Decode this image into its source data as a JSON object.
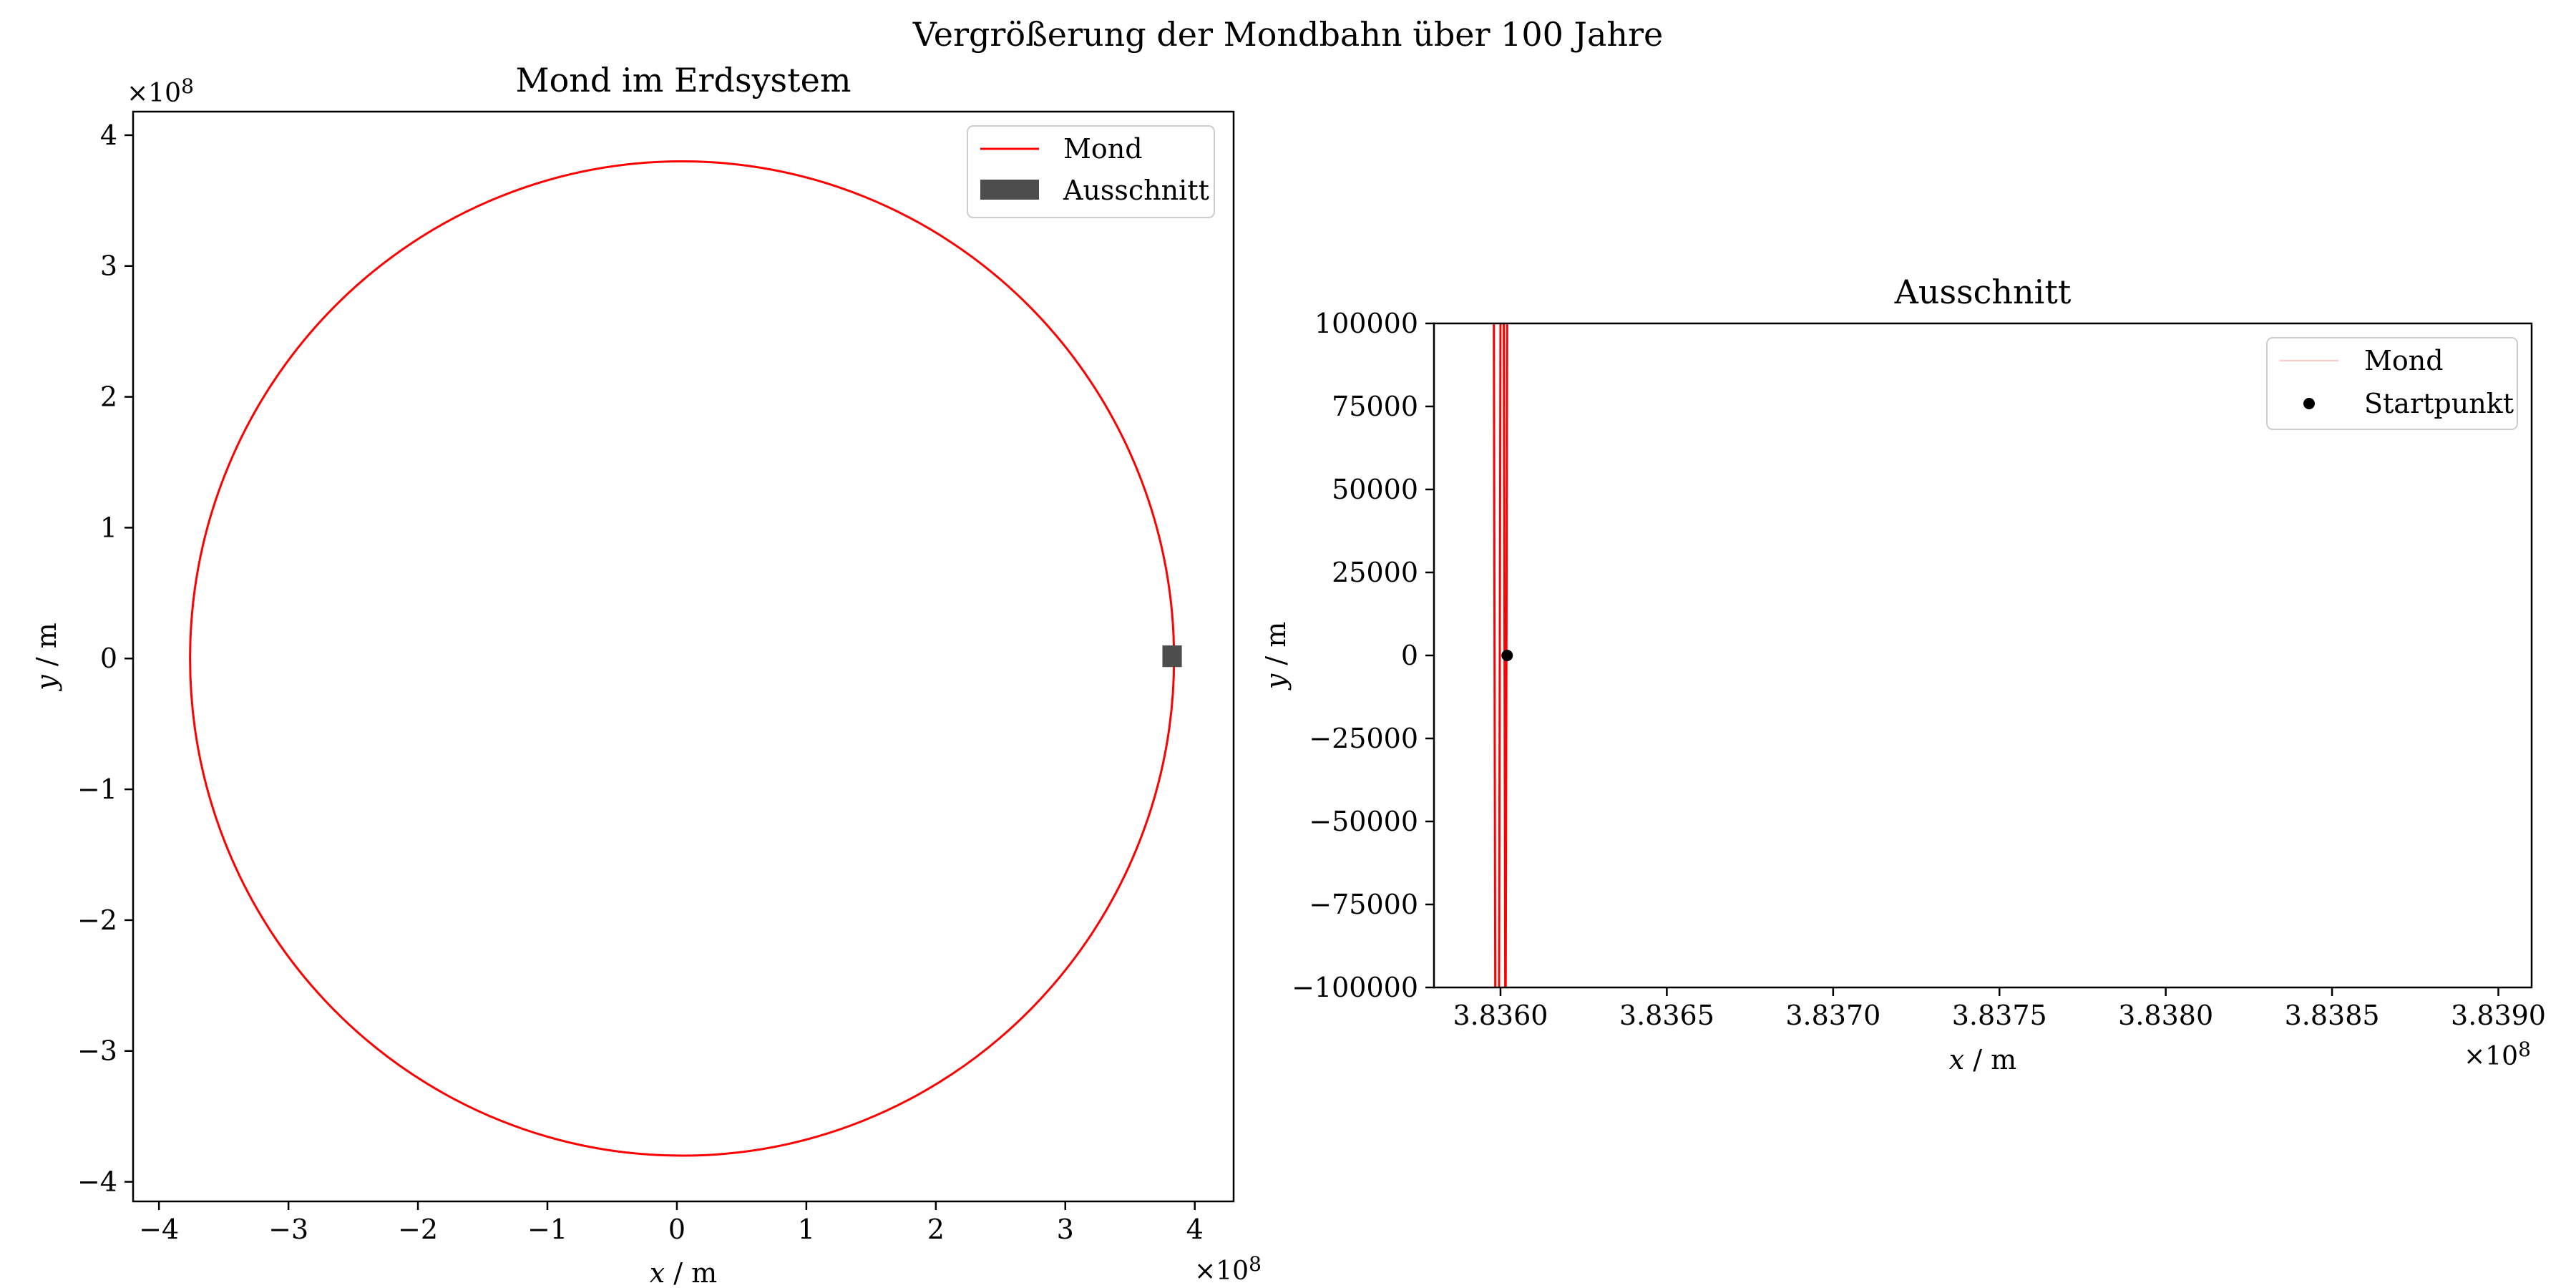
{
  "figure": {
    "suptitle": "Vergrößerung der Mondbahn über 100 Jahre"
  },
  "chart_data": [
    {
      "type": "line",
      "title": "Mond im Erdsystem",
      "xlabel": "x / m",
      "ylabel": "y / m",
      "x_offset_label": "×10^8",
      "y_offset_label": "×10^8",
      "xlim": [
        -420000000.0,
        430000000.0
      ],
      "ylim": [
        -415000000.0,
        418000000.0
      ],
      "xticks": [
        -400000000.0,
        -300000000.0,
        -200000000.0,
        -100000000.0,
        0,
        100000000.0,
        200000000.0,
        300000000.0,
        400000000.0
      ],
      "xtick_labels": [
        "−4",
        "−3",
        "−2",
        "−1",
        "0",
        "1",
        "2",
        "3",
        "4"
      ],
      "yticks": [
        -400000000.0,
        -300000000.0,
        -200000000.0,
        -100000000.0,
        0,
        100000000.0,
        200000000.0,
        300000000.0,
        400000000.0
      ],
      "ytick_labels": [
        "−4",
        "−3",
        "−2",
        "−1",
        "0",
        "1",
        "2",
        "3",
        "4"
      ],
      "grid": false,
      "legend_position": "top-right",
      "series": [
        {
          "name": "Mond",
          "kind": "orbit",
          "color": "#ff0000",
          "center_x": 4000000.0,
          "center_y": 0,
          "radius": 380000000.0
        },
        {
          "name": "Ausschnitt",
          "kind": "rectangle",
          "color": "#4d4d4d",
          "x_range": [
            375000000.0,
            390000000.0
          ],
          "y_range": [
            0,
            10000000.0
          ]
        }
      ]
    },
    {
      "type": "line",
      "title": "Ausschnitt",
      "xlabel": "x / m",
      "ylabel": "y / m",
      "x_offset_label": "×10^8",
      "xlim": [
        383580000.0,
        383910000.0
      ],
      "ylim": [
        -100000,
        100000
      ],
      "xticks": [
        383600000.0,
        383650000.0,
        383700000.0,
        383750000.0,
        383800000.0,
        383850000.0,
        383900000.0
      ],
      "xtick_labels": [
        "3.8360",
        "3.8365",
        "3.8370",
        "3.8375",
        "3.8380",
        "3.8385",
        "3.8390"
      ],
      "yticks": [
        100000,
        75000,
        50000,
        25000,
        0,
        -25000,
        -50000,
        -75000,
        -100000
      ],
      "ytick_labels": [
        "100000",
        "75000",
        "50000",
        "25000",
        "0",
        "−25000",
        "−50000",
        "−75000",
        "−100000"
      ],
      "grid": false,
      "legend_position": "top-right",
      "series": [
        {
          "name": "Mond",
          "kind": "crossings",
          "color": "#ff0000",
          "legend_color": "#ffc8c8",
          "x": [
            383598000.0,
            383600000.0,
            383601000.0,
            383602000.0
          ],
          "y_range": [
            -100000,
            100000
          ]
        },
        {
          "name": "Startpunkt",
          "kind": "point",
          "color": "#000000",
          "x": [
            383602000.0
          ],
          "y": [
            0
          ]
        }
      ]
    }
  ]
}
